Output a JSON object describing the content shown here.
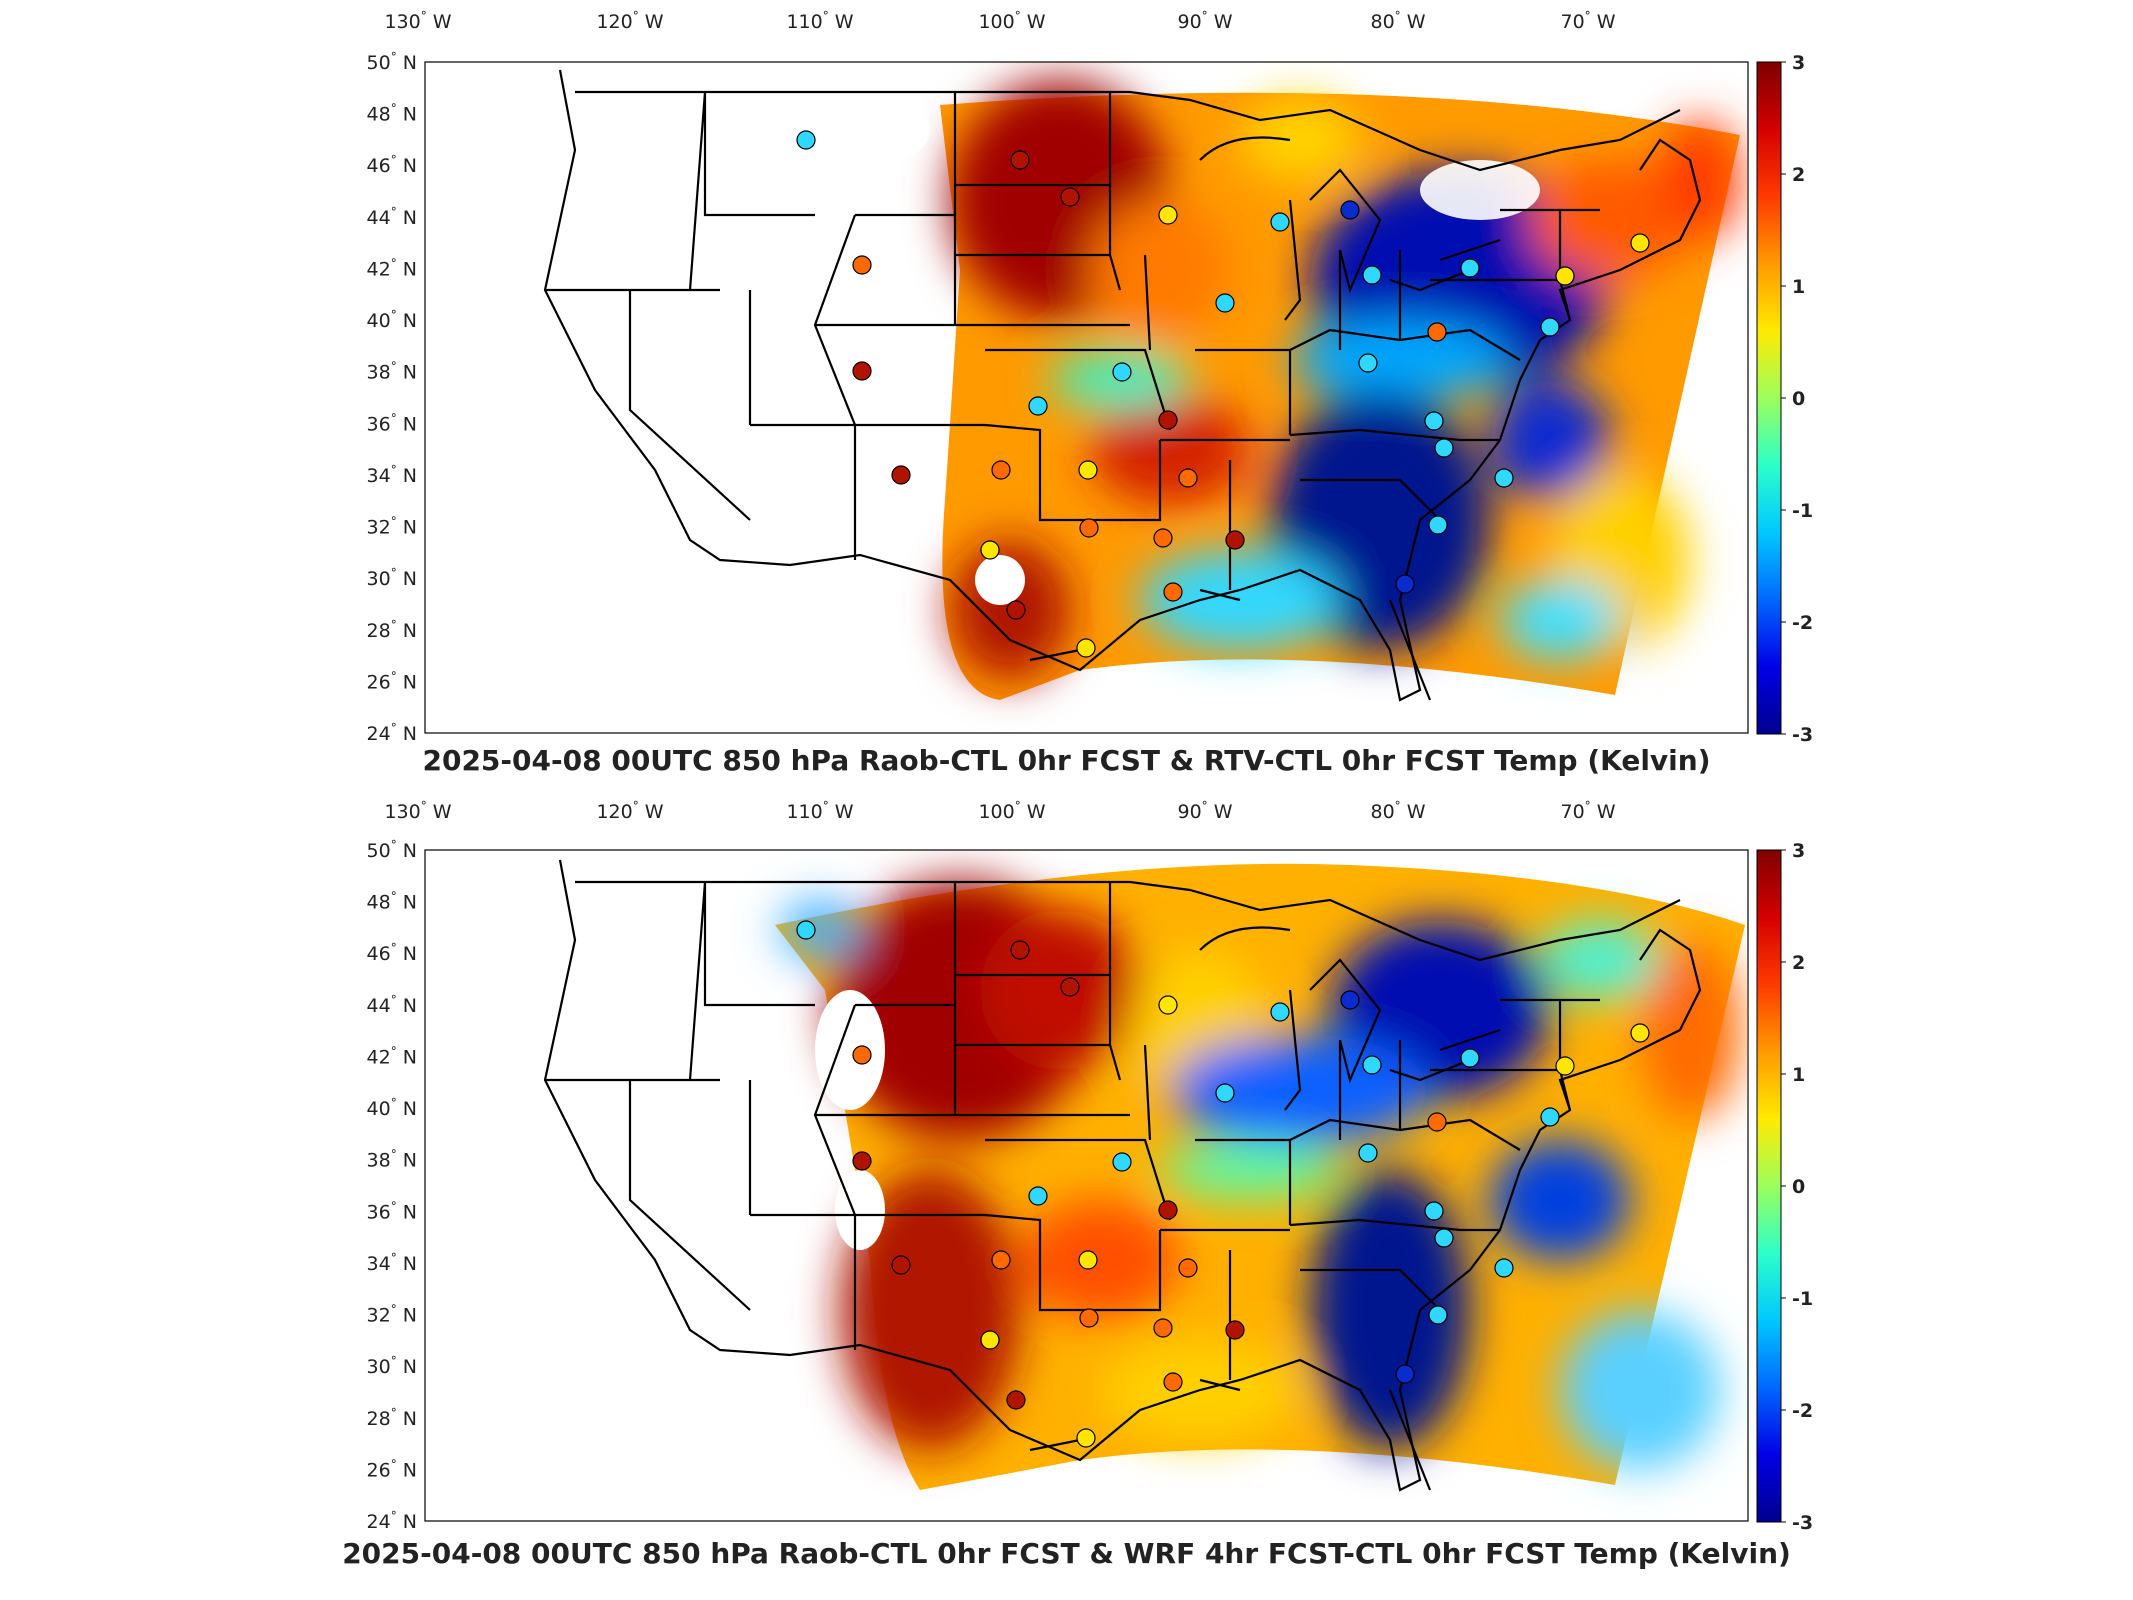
{
  "panels": [
    {
      "id": "top",
      "title": "2025-04-08 00UTC 850 hPa Raob-CTL 0hr FCST & RTV-CTL 0hr FCST Temp (Kelvin)"
    },
    {
      "id": "bottom",
      "title": "2025-04-08 00UTC 850 hPa Raob-CTL 0hr FCST & WRF 4hr FCST-CTL 0hr FCST Temp (Kelvin)"
    }
  ],
  "map": {
    "lon_ticks": [
      {
        "deg": "130",
        "dir": "W"
      },
      {
        "deg": "120",
        "dir": "W"
      },
      {
        "deg": "110",
        "dir": "W"
      },
      {
        "deg": "100",
        "dir": "W"
      },
      {
        "deg": "90",
        "dir": "W"
      },
      {
        "deg": "80",
        "dir": "W"
      },
      {
        "deg": "70",
        "dir": "W"
      }
    ],
    "lat_ticks": [
      {
        "deg": "50",
        "dir": "N"
      },
      {
        "deg": "48",
        "dir": "N"
      },
      {
        "deg": "46",
        "dir": "N"
      },
      {
        "deg": "44",
        "dir": "N"
      },
      {
        "deg": "42",
        "dir": "N"
      },
      {
        "deg": "40",
        "dir": "N"
      },
      {
        "deg": "38",
        "dir": "N"
      },
      {
        "deg": "36",
        "dir": "N"
      },
      {
        "deg": "34",
        "dir": "N"
      },
      {
        "deg": "32",
        "dir": "N"
      },
      {
        "deg": "30",
        "dir": "N"
      },
      {
        "deg": "28",
        "dir": "N"
      },
      {
        "deg": "26",
        "dir": "N"
      },
      {
        "deg": "24",
        "dir": "N"
      }
    ]
  },
  "colorbar": {
    "labels": [
      "3",
      "2",
      "1",
      "0",
      "-1",
      "-2",
      "-3"
    ],
    "colormap": [
      "#7f0000",
      "#d40000",
      "#ff3a00",
      "#ff9a00",
      "#ffea00",
      "#9cff5c",
      "#2dffc9",
      "#00c8ff",
      "#0068ff",
      "#0000e6",
      "#00008f"
    ]
  },
  "colors": {
    "hot": "#b01400",
    "warm": "#ff6a00",
    "yellow": "#ffe600",
    "cyan": "#30d8ff",
    "blue": "#0a2ccf",
    "navy": "#00188c",
    "outline": "#000000"
  }
}
